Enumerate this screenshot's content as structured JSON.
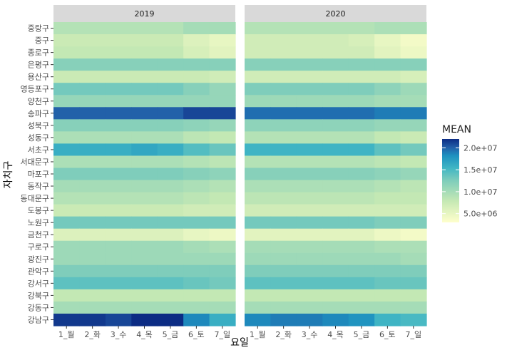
{
  "chart_data": {
    "type": "heatmap",
    "title": "",
    "xlabel": "요일",
    "ylabel": "자치구",
    "facets": [
      "2019",
      "2020"
    ],
    "x_categories": [
      "1_월",
      "2_화",
      "3_수",
      "4_목",
      "5_금",
      "6_토",
      "7_일"
    ],
    "y_categories": [
      "중랑구",
      "중구",
      "종로구",
      "은평구",
      "용산구",
      "영등포구",
      "양천구",
      "송파구",
      "성북구",
      "성동구",
      "서초구",
      "서대문구",
      "마포구",
      "동작구",
      "동대문구",
      "도봉구",
      "노원구",
      "금천구",
      "구로구",
      "광진구",
      "관악구",
      "강서구",
      "강북구",
      "강동구",
      "강남구"
    ],
    "legend": {
      "title": "MEAN",
      "ticks": [
        20000000,
        15000000,
        10000000,
        5000000
      ],
      "tick_labels": [
        "2.0e+07",
        "1.5e+07",
        "1.0e+07",
        "5.0e+06"
      ],
      "range": [
        3000000,
        22000000
      ],
      "position": "right"
    },
    "values": {
      "2019": [
        [
          9000000,
          9000000,
          9000000,
          9000000,
          9000000,
          10000000,
          10000000
        ],
        [
          7500000,
          7500000,
          7500000,
          7500000,
          7500000,
          6000000,
          5000000
        ],
        [
          8000000,
          8000000,
          8000000,
          8000000,
          8000000,
          6500000,
          5500000
        ],
        [
          12000000,
          12000000,
          12000000,
          12000000,
          12000000,
          12000000,
          12000000
        ],
        [
          7500000,
          7500000,
          7500000,
          7500000,
          7500000,
          7500000,
          7000000
        ],
        [
          13000000,
          13000000,
          13000000,
          13000000,
          13000000,
          12000000,
          11000000
        ],
        [
          11000000,
          11000000,
          11000000,
          11000000,
          11000000,
          11000000,
          11000000
        ],
        [
          20000000,
          20000000,
          20000000,
          20000000,
          20000000,
          21000000,
          21000000
        ],
        [
          12000000,
          12000000,
          12000000,
          12000000,
          12000000,
          11500000,
          11000000
        ],
        [
          9500000,
          9500000,
          9500000,
          9500000,
          9500000,
          8500000,
          8000000
        ],
        [
          16000000,
          16000000,
          16000000,
          16500000,
          16000000,
          14500000,
          13500000
        ],
        [
          9500000,
          9500000,
          9500000,
          9500000,
          9500000,
          9000000,
          8500000
        ],
        [
          12500000,
          12500000,
          12500000,
          12500000,
          12500000,
          12000000,
          11500000
        ],
        [
          10000000,
          10000000,
          10000000,
          10000000,
          10000000,
          9500000,
          9000000
        ],
        [
          9000000,
          9000000,
          9000000,
          9000000,
          9000000,
          8500000,
          8000000
        ],
        [
          7500000,
          7500000,
          7500000,
          7500000,
          7500000,
          7000000,
          7000000
        ],
        [
          13000000,
          13000000,
          13000000,
          13000000,
          13000000,
          13000000,
          13000000
        ],
        [
          6000000,
          6000000,
          6000000,
          6000000,
          6000000,
          5000000,
          4500000
        ],
        [
          10500000,
          10500000,
          10500000,
          10500000,
          10500000,
          10000000,
          9500000
        ],
        [
          10500000,
          10500000,
          10500000,
          10500000,
          10500000,
          10500000,
          10500000
        ],
        [
          12500000,
          12500000,
          12500000,
          12500000,
          12500000,
          12500000,
          12500000
        ],
        [
          14000000,
          14000000,
          14000000,
          14000000,
          14000000,
          13500000,
          13000000
        ],
        [
          8000000,
          8000000,
          8000000,
          8000000,
          8000000,
          8000000,
          8000000
        ],
        [
          10000000,
          10000000,
          10000000,
          10000000,
          10000000,
          10000000,
          10000000
        ],
        [
          21500000,
          21500000,
          21000000,
          22000000,
          22000000,
          18500000,
          16000000
        ]
      ],
      "2020": [
        [
          9000000,
          9000000,
          9000000,
          9000000,
          9000000,
          9500000,
          9500000
        ],
        [
          7000000,
          7000000,
          7000000,
          7000000,
          6500000,
          5000000,
          4000000
        ],
        [
          7000000,
          7000000,
          7000000,
          7000000,
          7000000,
          5500000,
          4500000
        ],
        [
          12000000,
          12000000,
          12000000,
          12000000,
          12000000,
          12000000,
          12000000
        ],
        [
          7000000,
          7000000,
          7000000,
          7000000,
          7000000,
          7000000,
          6500000
        ],
        [
          12500000,
          12500000,
          12500000,
          12500000,
          12500000,
          11500000,
          10500000
        ],
        [
          10500000,
          10500000,
          10500000,
          10500000,
          10500000,
          10000000,
          10000000
        ],
        [
          19500000,
          19500000,
          19500000,
          19500000,
          19500000,
          19000000,
          19000000
        ],
        [
          11500000,
          11500000,
          11500000,
          11500000,
          11500000,
          11000000,
          11000000
        ],
        [
          9000000,
          9000000,
          9000000,
          9000000,
          9000000,
          8000000,
          7500000
        ],
        [
          15500000,
          15500000,
          15500000,
          15500000,
          15500000,
          14000000,
          13000000
        ],
        [
          9000000,
          9000000,
          9000000,
          9000000,
          9000000,
          8500000,
          8000000
        ],
        [
          12000000,
          12000000,
          12000000,
          12000000,
          12000000,
          11500000,
          11000000
        ],
        [
          9500000,
          9500000,
          9500000,
          9500000,
          9500000,
          9000000,
          8500000
        ],
        [
          8500000,
          8500000,
          8500000,
          8500000,
          8500000,
          8000000,
          8000000
        ],
        [
          7000000,
          7000000,
          7000000,
          7000000,
          7000000,
          7000000,
          7000000
        ],
        [
          13000000,
          13000000,
          13000000,
          13000000,
          13000000,
          12500000,
          12500000
        ],
        [
          5500000,
          5500000,
          5500000,
          5500000,
          5500000,
          4500000,
          4000000
        ],
        [
          10000000,
          10000000,
          10000000,
          10000000,
          10000000,
          9500000,
          9500000
        ],
        [
          10500000,
          10500000,
          10500000,
          10500000,
          10500000,
          10500000,
          10000000
        ],
        [
          12500000,
          12500000,
          12500000,
          12500000,
          12500000,
          12500000,
          12500000
        ],
        [
          14000000,
          14000000,
          14000000,
          14000000,
          14000000,
          13500000,
          13500000
        ],
        [
          8000000,
          8000000,
          8000000,
          8000000,
          8000000,
          8000000,
          8000000
        ],
        [
          10000000,
          10000000,
          10000000,
          10000000,
          10000000,
          10000000,
          10000000
        ],
        [
          18500000,
          19000000,
          19000000,
          18500000,
          18000000,
          15500000,
          15000000
        ]
      ]
    }
  }
}
